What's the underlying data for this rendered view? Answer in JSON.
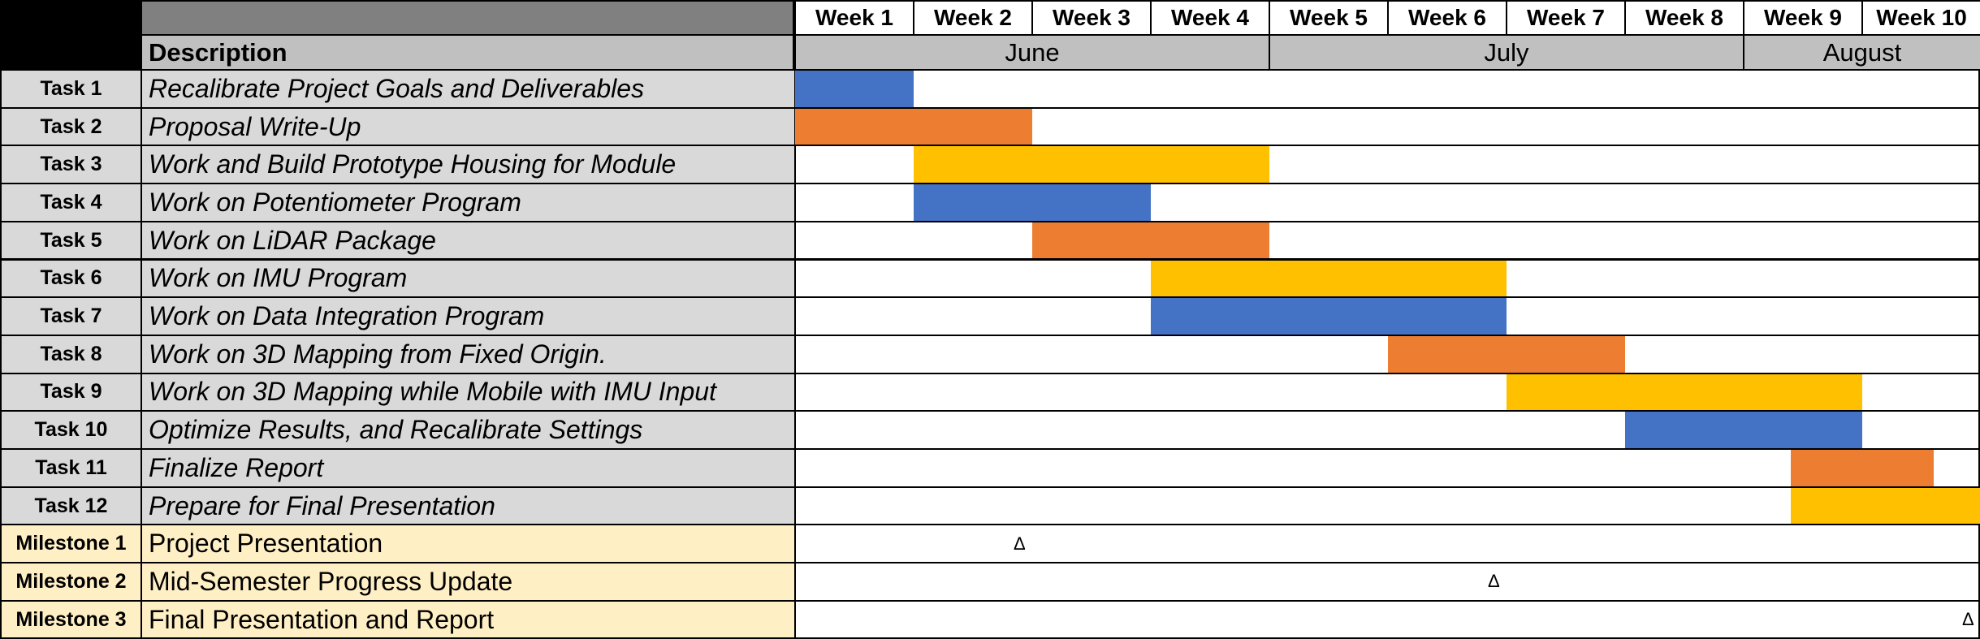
{
  "chart_data": {
    "type": "gantt",
    "header": {
      "description_label": "Description"
    },
    "weeks": [
      "Week 1",
      "Week 2",
      "Week 3",
      "Week 4",
      "Week 5",
      "Week 6",
      "Week 7",
      "Week 8",
      "Week 9",
      "Week 10"
    ],
    "months": [
      {
        "name": "June",
        "start_week": 0,
        "end_week": 4
      },
      {
        "name": "July",
        "start_week": 4,
        "end_week": 8
      },
      {
        "name": "August",
        "start_week": 8,
        "end_week": 10
      }
    ],
    "tasks": [
      {
        "label": "Task 1",
        "description": "Recalibrate Project Goals and Deliverables",
        "start_week": 0,
        "end_week": 1,
        "color": "#4472c4"
      },
      {
        "label": "Task 2",
        "description": "Proposal Write-Up",
        "start_week": 0,
        "end_week": 2,
        "color": "#ed7d31"
      },
      {
        "label": "Task 3",
        "description": "Work and Build Prototype Housing for Module",
        "start_week": 1,
        "end_week": 4,
        "color": "#ffc000"
      },
      {
        "label": "Task 4",
        "description": "Work on Potentiometer Program",
        "start_week": 1,
        "end_week": 3,
        "color": "#4472c4"
      },
      {
        "label": "Task 5",
        "description": "Work on LiDAR Package",
        "start_week": 2,
        "end_week": 4,
        "color": "#ed7d31"
      },
      {
        "label": "Task 6",
        "description": "Work on IMU Program",
        "start_week": 3,
        "end_week": 6,
        "color": "#ffc000"
      },
      {
        "label": "Task 7",
        "description": "Work on Data Integration Program",
        "start_week": 3,
        "end_week": 6,
        "color": "#4472c4"
      },
      {
        "label": "Task 8",
        "description": "Work on 3D Mapping from Fixed Origin.",
        "start_week": 5,
        "end_week": 7,
        "color": "#ed7d31"
      },
      {
        "label": "Task 9",
        "description": "Work on 3D Mapping while Mobile with IMU Input",
        "start_week": 6,
        "end_week": 9,
        "color": "#ffc000"
      },
      {
        "label": "Task 10",
        "description": "Optimize Results, and Recalibrate Settings",
        "start_week": 7,
        "end_week": 9,
        "color": "#4472c4"
      },
      {
        "label": "Task 11",
        "description": "Finalize Report",
        "start_week": 8.4,
        "end_week": 9.6,
        "color": "#ed7d31"
      },
      {
        "label": "Task 12",
        "description": "Prepare for Final Presentation",
        "start_week": 8.4,
        "end_week": 10,
        "color": "#ffc000"
      }
    ],
    "milestones": [
      {
        "label": "Milestone 1",
        "description": "Project Presentation",
        "week": 1.9,
        "marker": "Δ"
      },
      {
        "label": "Milestone 2",
        "description": "Mid-Semester Progress Update",
        "week": 5.9,
        "marker": "Δ"
      },
      {
        "label": "Milestone 3",
        "description": "Final Presentation and Report",
        "week": 9.9,
        "marker": "Δ"
      }
    ]
  }
}
